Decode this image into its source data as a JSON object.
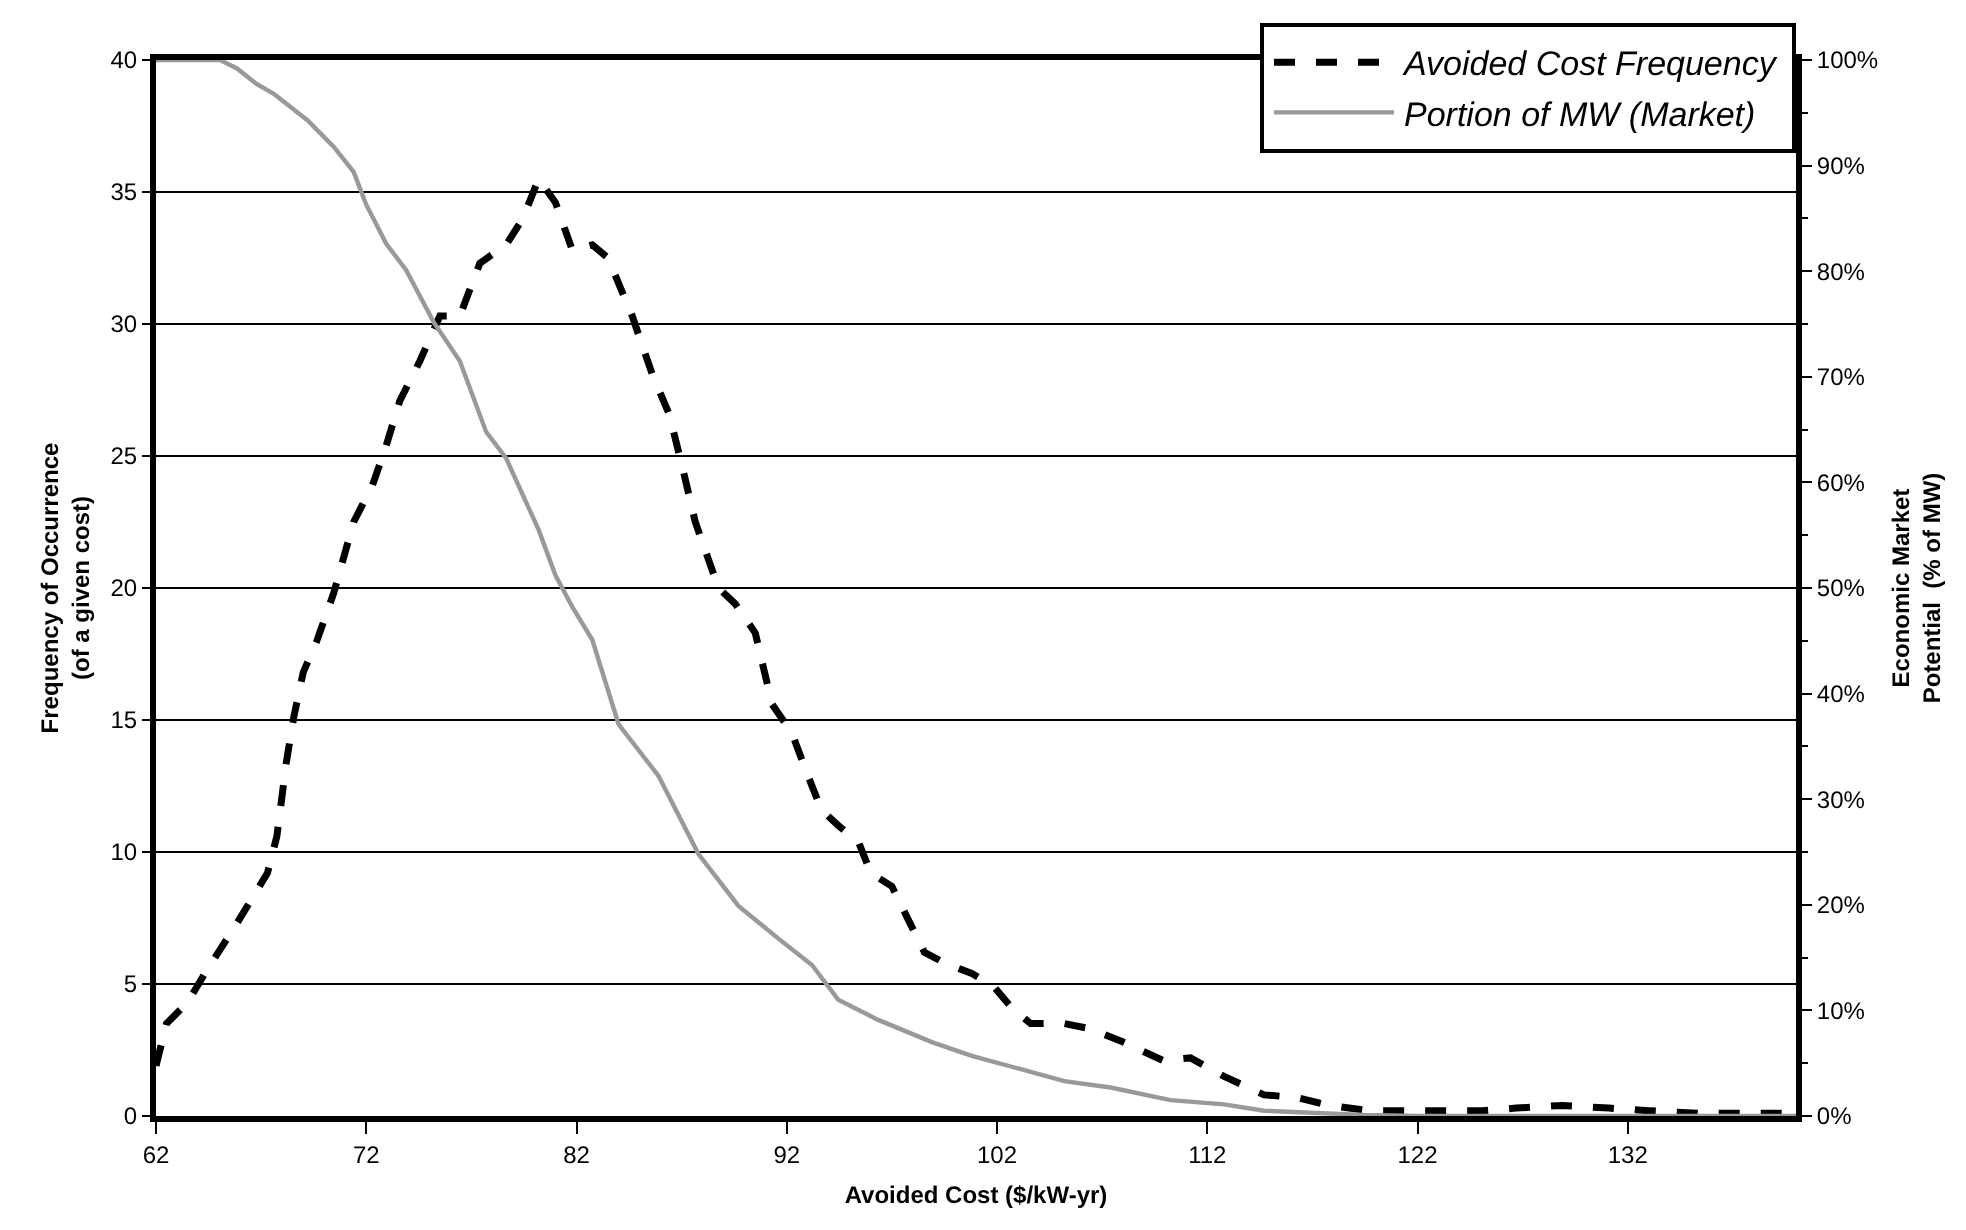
{
  "chart_data": {
    "type": "line",
    "xlabel": "Avoided Cost ($/kW-yr)",
    "ylabel": "Frequency of Occurrence\n(of a given cost)",
    "y2label": "Economic Market\nPotential  (% of MW)",
    "xlim": [
      62,
      140
    ],
    "xticks": [
      62,
      72,
      82,
      92,
      102,
      112,
      122,
      132
    ],
    "ylim": [
      0,
      40
    ],
    "yticks": [
      0,
      5,
      10,
      15,
      20,
      25,
      30,
      35,
      40
    ],
    "y2lim": [
      0,
      100
    ],
    "y2ticks": [
      {
        "value": 0,
        "label": "0%"
      },
      {
        "value": 10,
        "label": "10%"
      },
      {
        "value": 20,
        "label": "20%"
      },
      {
        "value": 30,
        "label": "30%"
      },
      {
        "value": 40,
        "label": "40%"
      },
      {
        "value": 50,
        "label": "50%"
      },
      {
        "value": 60,
        "label": "60%"
      },
      {
        "value": 70,
        "label": "70%"
      },
      {
        "value": 80,
        "label": "80%"
      },
      {
        "value": 90,
        "label": "90%"
      },
      {
        "value": 100,
        "label": "100%"
      }
    ],
    "grid": "y",
    "legend": "top right",
    "marker": "none",
    "series": [
      {
        "name": "Avoided Cost Frequency",
        "color": "#000000",
        "line_style": "dashed",
        "x": [
          62,
          62.5,
          63.5,
          64.4,
          65.85,
          67.3,
          67.75,
          68.2,
          68.55,
          69.0,
          69.65,
          70.45,
          71.4,
          72.3,
          72.95,
          73.6,
          74.55,
          75.5,
          76.45,
          77.4,
          78.65,
          79.45,
          80.2,
          81.0,
          81.8,
          82.75,
          83.5,
          84.65,
          85.6,
          86.4,
          87.0,
          87.65,
          88.75,
          89.55,
          90.5,
          91.3,
          92.25,
          92.9,
          93.65,
          94.45,
          95.4,
          96.0,
          97.0,
          97.8,
          98.55,
          99.5,
          100.8,
          101.85,
          102.7,
          103.6,
          105.2,
          106.45,
          108.0,
          109.9,
          111.2,
          112.8,
          114.7,
          116.25,
          117.8,
          119.7,
          122.6,
          125.1,
          126.7,
          128.9,
          131.1,
          133.0,
          135.5,
          136.8,
          139.6
        ],
        "values": [
          1.9,
          3.5,
          4.3,
          5.5,
          7.3,
          9.2,
          10.6,
          13.4,
          15.1,
          16.8,
          18.0,
          19.8,
          22.5,
          23.9,
          25.4,
          27.1,
          28.6,
          30.3,
          30.3,
          32.3,
          33.0,
          34.0,
          35.5,
          34.6,
          32.8,
          33.0,
          32.5,
          30.3,
          28.1,
          26.6,
          24.7,
          22.5,
          20.0,
          19.4,
          18.3,
          15.6,
          14.5,
          13.1,
          11.6,
          11.0,
          10.4,
          9.2,
          8.7,
          7.4,
          6.2,
          5.8,
          5.4,
          4.9,
          4.1,
          3.5,
          3.5,
          3.3,
          2.8,
          2.1,
          2.2,
          1.5,
          0.8,
          0.7,
          0.4,
          0.2,
          0.2,
          0.2,
          0.3,
          0.4,
          0.3,
          0.2,
          0.1,
          0.1,
          0.1
        ]
      },
      {
        "name": "Portion of MW (Market)",
        "color": "#999999",
        "line_style": "solid",
        "axis": "y2",
        "x": [
          62,
          65.05,
          65.85,
          66.8,
          67.6,
          69.2,
          70.45,
          71.4,
          72.0,
          72.95,
          73.9,
          75.2,
          76.45,
          77.7,
          78.65,
          80.2,
          81.0,
          81.8,
          82.75,
          84.0,
          85.9,
          87.8,
          89.7,
          91.6,
          93.2,
          94.45,
          96.35,
          98.9,
          100.8,
          103.0,
          105.2,
          107.4,
          110.25,
          112.8,
          114.7,
          119.4,
          122,
          130,
          140
        ],
        "values": [
          100,
          100,
          99.2,
          97.7,
          96.8,
          94.3,
          91.8,
          89.4,
          86.3,
          82.6,
          80.1,
          75.2,
          71.5,
          64.8,
          62.3,
          55.5,
          51.2,
          48.2,
          45.1,
          37.1,
          32.2,
          24.8,
          19.9,
          16.8,
          14.3,
          11.0,
          9.1,
          7.0,
          5.7,
          4.5,
          3.3,
          2.7,
          1.5,
          1.1,
          0.5,
          0.1,
          0,
          0,
          0
        ]
      }
    ]
  }
}
